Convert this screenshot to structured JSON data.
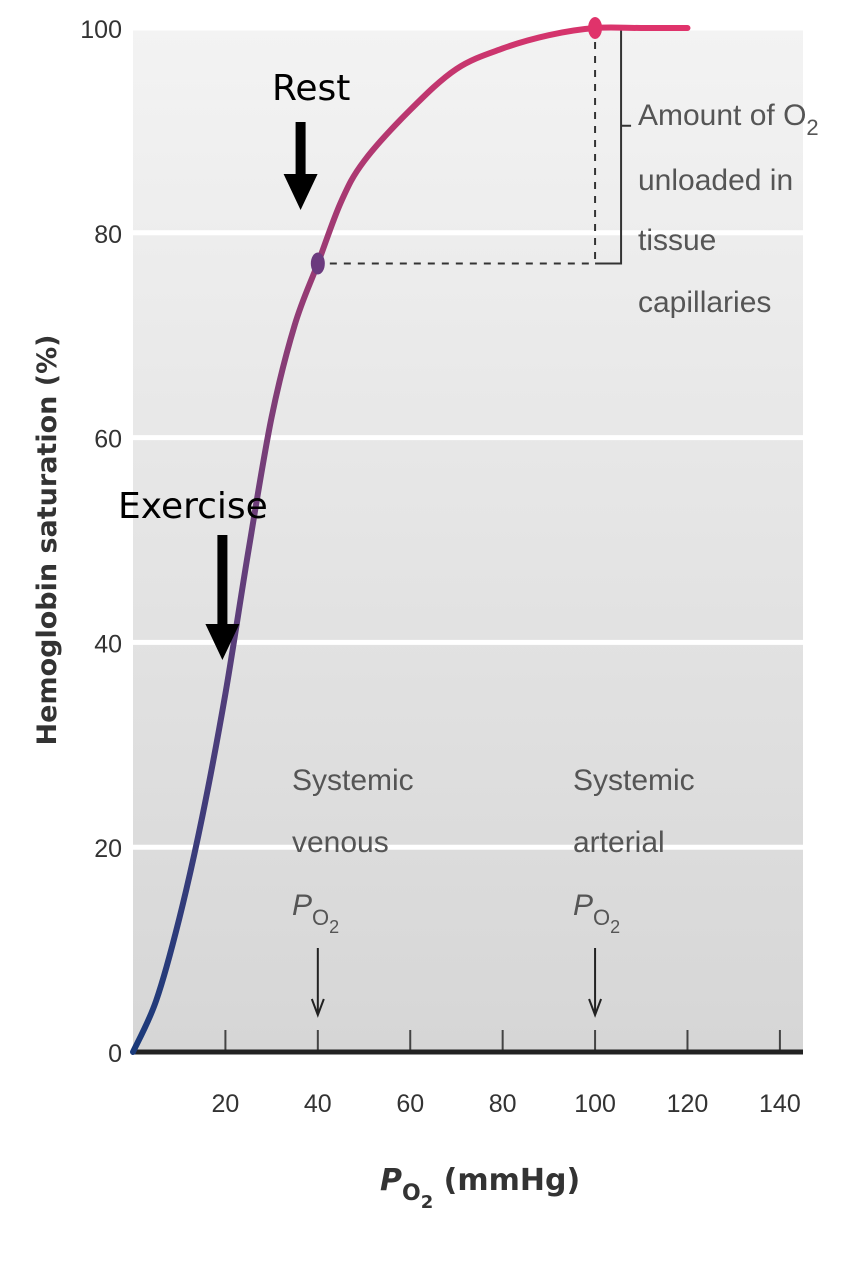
{
  "chart_data": {
    "type": "line",
    "ylabel": "Hemoglobin saturation (%)",
    "xlabel_sym": "P",
    "xlabel_sub": "O",
    "xlabel_sub2": "2",
    "xlabel_unit": " (mmHg)",
    "xlim": [
      0,
      145
    ],
    "ylim": [
      0,
      100
    ],
    "x_ticks": [
      20,
      40,
      60,
      80,
      100,
      120,
      140
    ],
    "y_ticks": [
      0,
      20,
      40,
      60,
      80,
      100
    ],
    "series": [
      {
        "x": [
          0,
          5,
          10,
          15,
          20,
          25,
          30,
          35,
          40,
          45,
          50,
          60,
          70,
          80,
          90,
          100,
          110,
          120
        ],
        "y": [
          0,
          5,
          13,
          23,
          35,
          49,
          62,
          71,
          77,
          83,
          87,
          92,
          96,
          98,
          99.3,
          100,
          100,
          100
        ]
      }
    ],
    "points": [
      {
        "x": 40,
        "y": 77
      },
      {
        "x": 100,
        "y": 100
      }
    ],
    "annotations": {
      "rest": "Rest",
      "exercise": "Exercise",
      "unloaded_line1": "Amount of O",
      "unloaded_line1_sub": "2",
      "unloaded_line2": "unloaded in",
      "unloaded_line3": "tissue",
      "unloaded_line4": "capillaries",
      "venous_line1": "Systemic",
      "venous_line2": "venous",
      "venous_sym": "P",
      "venous_sub": "O",
      "venous_sub2": "2",
      "arterial_line1": "Systemic",
      "arterial_line2": "arterial",
      "arterial_sym": "P",
      "arterial_sub": "O",
      "arterial_sub2": "2"
    },
    "arrows": {
      "rest_x": 38,
      "exercise_x": 20,
      "venous_x": 40,
      "arterial_x": 100
    },
    "colors": {
      "curve_start": "#1a3a7a",
      "curve_mid": "#6b3f7a",
      "curve_end": "#e0336b",
      "band_light": "#f0f0f0",
      "band_dark": "#d9d9d9",
      "gridline": "#ffffff"
    }
  }
}
